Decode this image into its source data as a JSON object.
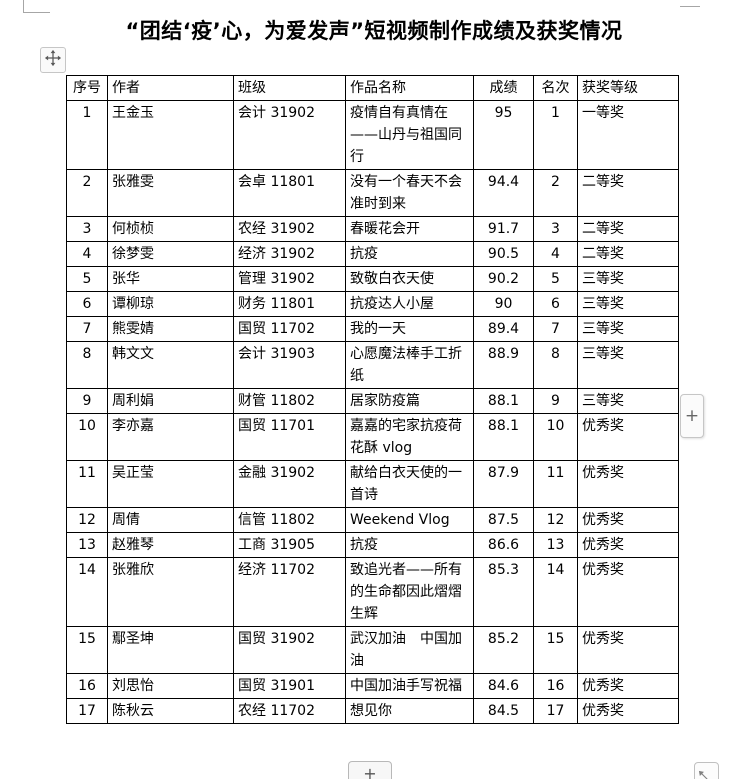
{
  "title": "“团结‘疫’心，为爱发声”短视频制作成绩及获奖情况",
  "table": {
    "headers": {
      "no": "序号",
      "author": "作者",
      "class": "班级",
      "work": "作品名称",
      "score": "成绩",
      "rank": "名次",
      "award": "获奖等级"
    },
    "rows": [
      {
        "no": "1",
        "author": "王金玉",
        "class": "会计 31902",
        "work": "疫情自有真情在——山丹与祖国同行",
        "score": "95",
        "rank": "1",
        "award": "一等奖"
      },
      {
        "no": "2",
        "author": "张雅雯",
        "class": "会卓 11801",
        "work": "没有一个春天不会准时到来",
        "score": "94.4",
        "rank": "2",
        "award": "二等奖"
      },
      {
        "no": "3",
        "author": "何桢桢",
        "class": "农经 31902",
        "work": "春暖花会开",
        "score": "91.7",
        "rank": "3",
        "award": "二等奖"
      },
      {
        "no": "4",
        "author": "徐梦雯",
        "class": "经济 31902",
        "work": "抗疫",
        "score": "90.5",
        "rank": "4",
        "award": "二等奖"
      },
      {
        "no": "5",
        "author": "张华",
        "class": "管理 31902",
        "work": "致敬白衣天使",
        "score": "90.2",
        "rank": "5",
        "award": "三等奖"
      },
      {
        "no": "6",
        "author": "谭柳琼",
        "class": "财务 11801",
        "work": "抗疫达人小屋",
        "score": "90",
        "rank": "6",
        "award": "三等奖"
      },
      {
        "no": "7",
        "author": "熊雯婧",
        "class": "国贸 11702",
        "work": "我的一天",
        "score": "89.4",
        "rank": "7",
        "award": "三等奖"
      },
      {
        "no": "8",
        "author": "韩文文",
        "class": "会计 31903",
        "work": "心愿魔法棒手工折纸",
        "score": "88.9",
        "rank": "8",
        "award": "三等奖"
      },
      {
        "no": "9",
        "author": "周利娟",
        "class": "财管 11802",
        "work": "居家防疫篇",
        "score": "88.1",
        "rank": "9",
        "award": "三等奖"
      },
      {
        "no": "10",
        "author": "李亦嘉",
        "class": "国贸 11701",
        "work": "嘉嘉的宅家抗疫荷花酥 vlog",
        "score": "88.1",
        "rank": "10",
        "award": "优秀奖"
      },
      {
        "no": "11",
        "author": "吴正莹",
        "class": "金融 31902",
        "work": "献给白衣天使的一首诗",
        "score": "87.9",
        "rank": "11",
        "award": "优秀奖"
      },
      {
        "no": "12",
        "author": "周倩",
        "class": "信管 11802",
        "work": "Weekend Vlog",
        "score": "87.5",
        "rank": "12",
        "award": "优秀奖"
      },
      {
        "no": "13",
        "author": "赵雅琴",
        "class": "工商 31905",
        "work": "抗疫",
        "score": "86.6",
        "rank": "13",
        "award": "优秀奖"
      },
      {
        "no": "14",
        "author": "张雅欣",
        "class": "经济 11702",
        "work": "致追光者——所有的生命都因此熠熠生辉",
        "score": "85.3",
        "rank": "14",
        "award": "优秀奖"
      },
      {
        "no": "15",
        "author": "鄢圣坤",
        "class": "国贸 31902",
        "work": "武汉加油　中国加油",
        "score": "85.2",
        "rank": "15",
        "award": "优秀奖"
      },
      {
        "no": "16",
        "author": "刘思怡",
        "class": "国贸 31901",
        "work": "中国加油手写祝福",
        "score": "84.6",
        "rank": "16",
        "award": "优秀奖"
      },
      {
        "no": "17",
        "author": "陈秋云",
        "class": "农经 11702",
        "work": "想见你",
        "score": "84.5",
        "rank": "17",
        "award": "优秀奖"
      }
    ]
  },
  "controls": {
    "add_row_label": "+",
    "add_col_label": "+",
    "move_handle_icon": "move-four-way-arrow-icon",
    "resize_icon": "diagonal-arrow-icon"
  },
  "colors": {
    "table_border": "#000000",
    "control_border": "#c6c6c6",
    "crop_mark": "#a6a6a6"
  }
}
